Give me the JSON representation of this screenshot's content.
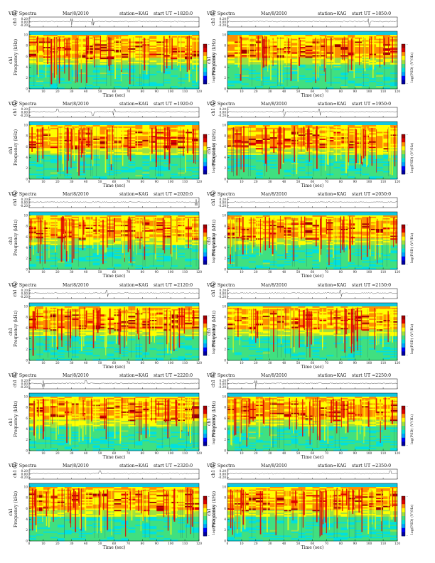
{
  "chart_data": {
    "type": "heatmap",
    "panel_title": "VLF Spectra",
    "date": "Mar/8/2010",
    "station": "station=KAG",
    "start_prefix": "start  UT =",
    "channel_label": "ch1",
    "waveform_ylabel": "ch1 (V)",
    "waveform_ticks": [
      "0.20",
      "0.00",
      "-0.20"
    ],
    "freq_ylabel": "Frequency (kHz)",
    "freq_ticks": [
      "10",
      "8",
      "6",
      "4",
      "2",
      "0"
    ],
    "xlabel": "Time (sec)",
    "x_ticks": [
      "0",
      "10",
      "20",
      "30",
      "40",
      "50",
      "60",
      "70",
      "80",
      "90",
      "100",
      "110",
      "120"
    ],
    "xlim": [
      0,
      120
    ],
    "ylim_khz": [
      0,
      10
    ],
    "colorbar_label": "log(PSD) (V²/Hz)",
    "colorbar_top": "-",
    "colorbar_bottom": "-",
    "colormap": [
      "#0000a0",
      "#0000ff",
      "#00a0ff",
      "#00e0e0",
      "#40e080",
      "#a0e040",
      "#ffff00",
      "#ff9000",
      "#e00000",
      "#a00000"
    ],
    "panels": [
      {
        "start_ut": "1820:0",
        "spike_times": [
          30,
          45
        ]
      },
      {
        "start_ut": "1850:0",
        "spike_times": [
          100
        ]
      },
      {
        "start_ut": "1920:0",
        "spike_times": [
          20,
          45,
          60
        ]
      },
      {
        "start_ut": "1950:0",
        "spike_times": [
          40,
          65
        ]
      },
      {
        "start_ut": "2020:0",
        "spike_times": [
          118
        ]
      },
      {
        "start_ut": "2050:0",
        "spike_times": []
      },
      {
        "start_ut": "2120:0",
        "spike_times": [
          55
        ]
      },
      {
        "start_ut": "2150:0",
        "spike_times": [
          80
        ]
      },
      {
        "start_ut": "2220:0",
        "spike_times": [
          10,
          40
        ]
      },
      {
        "start_ut": "2250:0",
        "spike_times": [
          20
        ]
      },
      {
        "start_ut": "2320:0",
        "spike_times": [
          50
        ]
      },
      {
        "start_ut": "2350:0",
        "spike_times": [
          115
        ]
      }
    ]
  }
}
